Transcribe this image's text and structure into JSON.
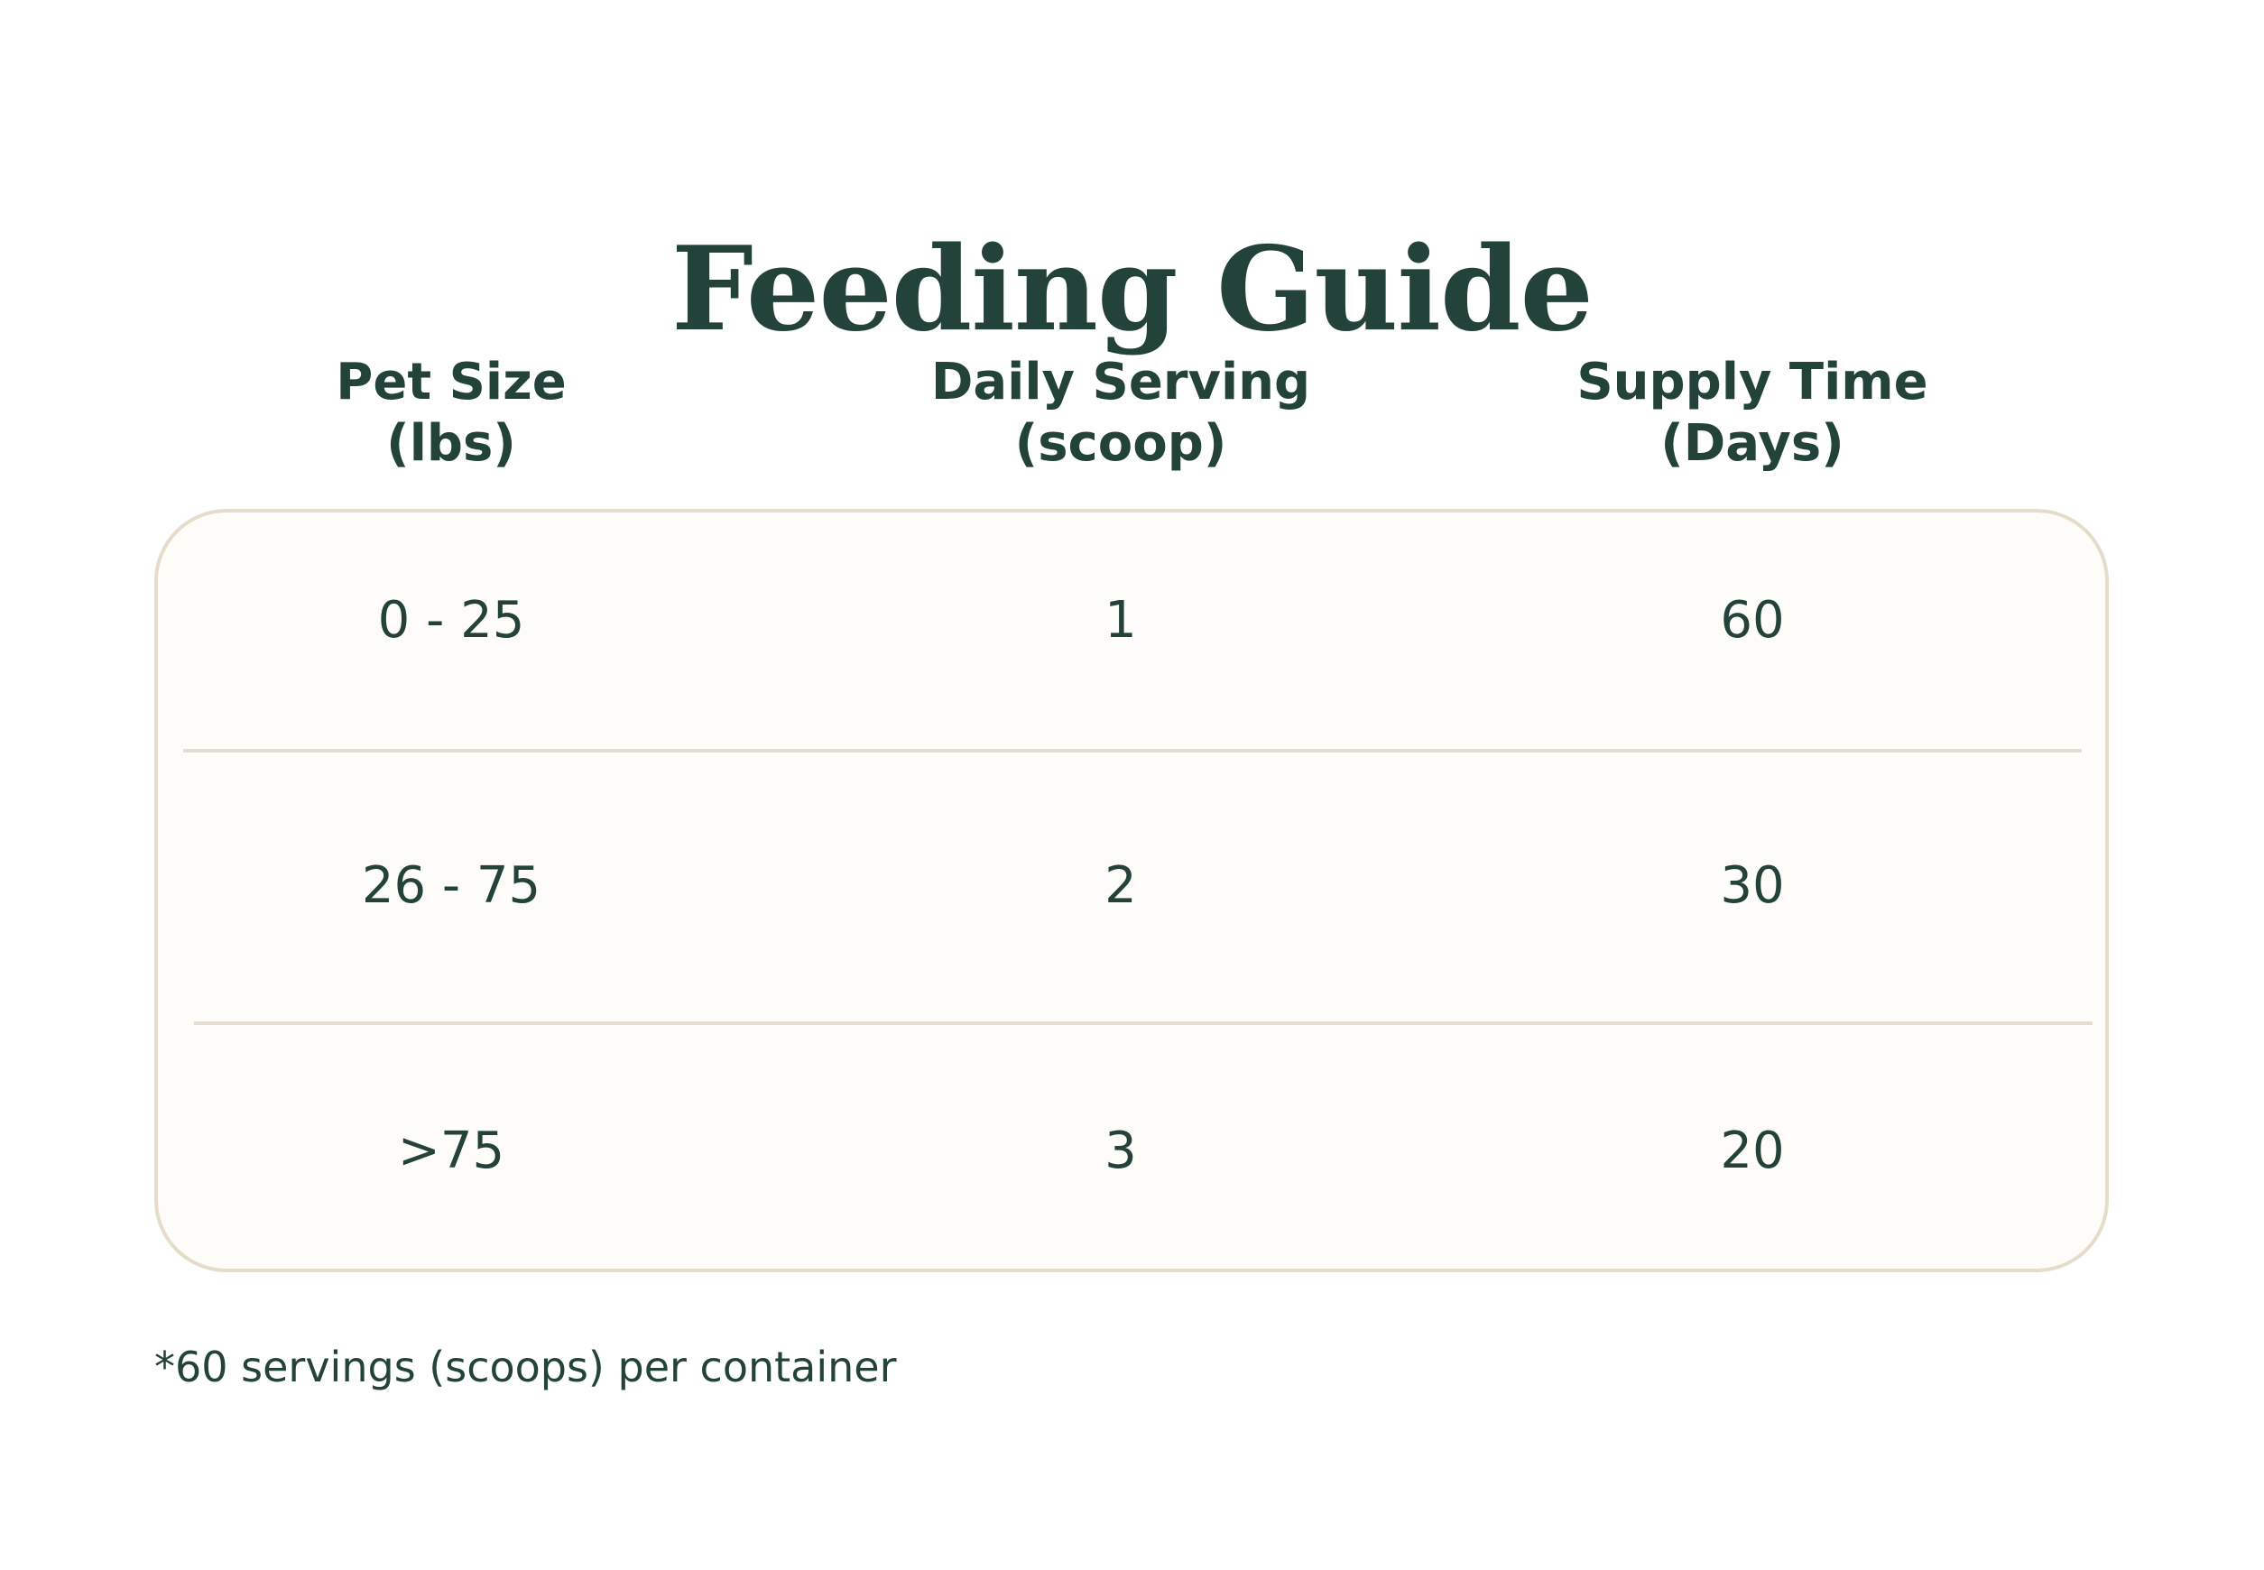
{
  "title": "Feeding Guide",
  "columns": [
    {
      "line1": "Pet Size",
      "line2": "(lbs)"
    },
    {
      "line1": "Daily Serving",
      "line2": "(scoop)"
    },
    {
      "line1": "Supply Time",
      "line2": "(Days)"
    }
  ],
  "rows": [
    {
      "pet_size": "0 - 25",
      "daily_serving": "1",
      "supply_time": "60"
    },
    {
      "pet_size": "26 - 75",
      "daily_serving": "2",
      "supply_time": "30"
    },
    {
      "pet_size": ">75",
      "daily_serving": "3",
      "supply_time": "20"
    }
  ],
  "footnote": "*60 servings (scoops) per container",
  "colors": {
    "text": "#23433a",
    "card_background": "#fefcf9",
    "card_border": "#e6dccb",
    "divider": "#e4ddd0"
  }
}
